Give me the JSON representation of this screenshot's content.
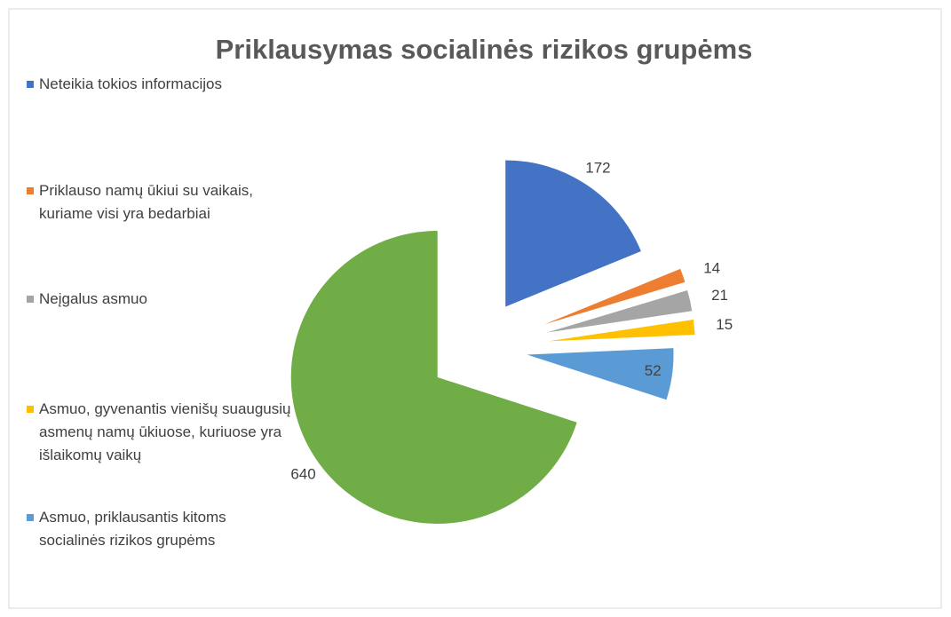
{
  "chart_data": {
    "type": "pie",
    "title": "Priklausymas socialinės rizikos grupėms",
    "categories": [
      "Neteikia tokios informacijos",
      "Priklauso namų ūkiui su vaikais, kuriame visi yra bedarbiai",
      "Neįgalus asmuo",
      "Asmuo, gyvenantis vienišų suaugusių asmenų namų ūkiuose, kuriuose yra išlaikomų vaikų",
      "Asmuo, priklausantis kitoms socialinės rizikos grupėms",
      null
    ],
    "values": [
      172,
      14,
      21,
      15,
      52,
      640
    ],
    "colors": [
      "#4472c4",
      "#ed7d31",
      "#a5a5a5",
      "#ffc000",
      "#5b9bd5",
      "#70ad47"
    ],
    "legend": "left"
  }
}
